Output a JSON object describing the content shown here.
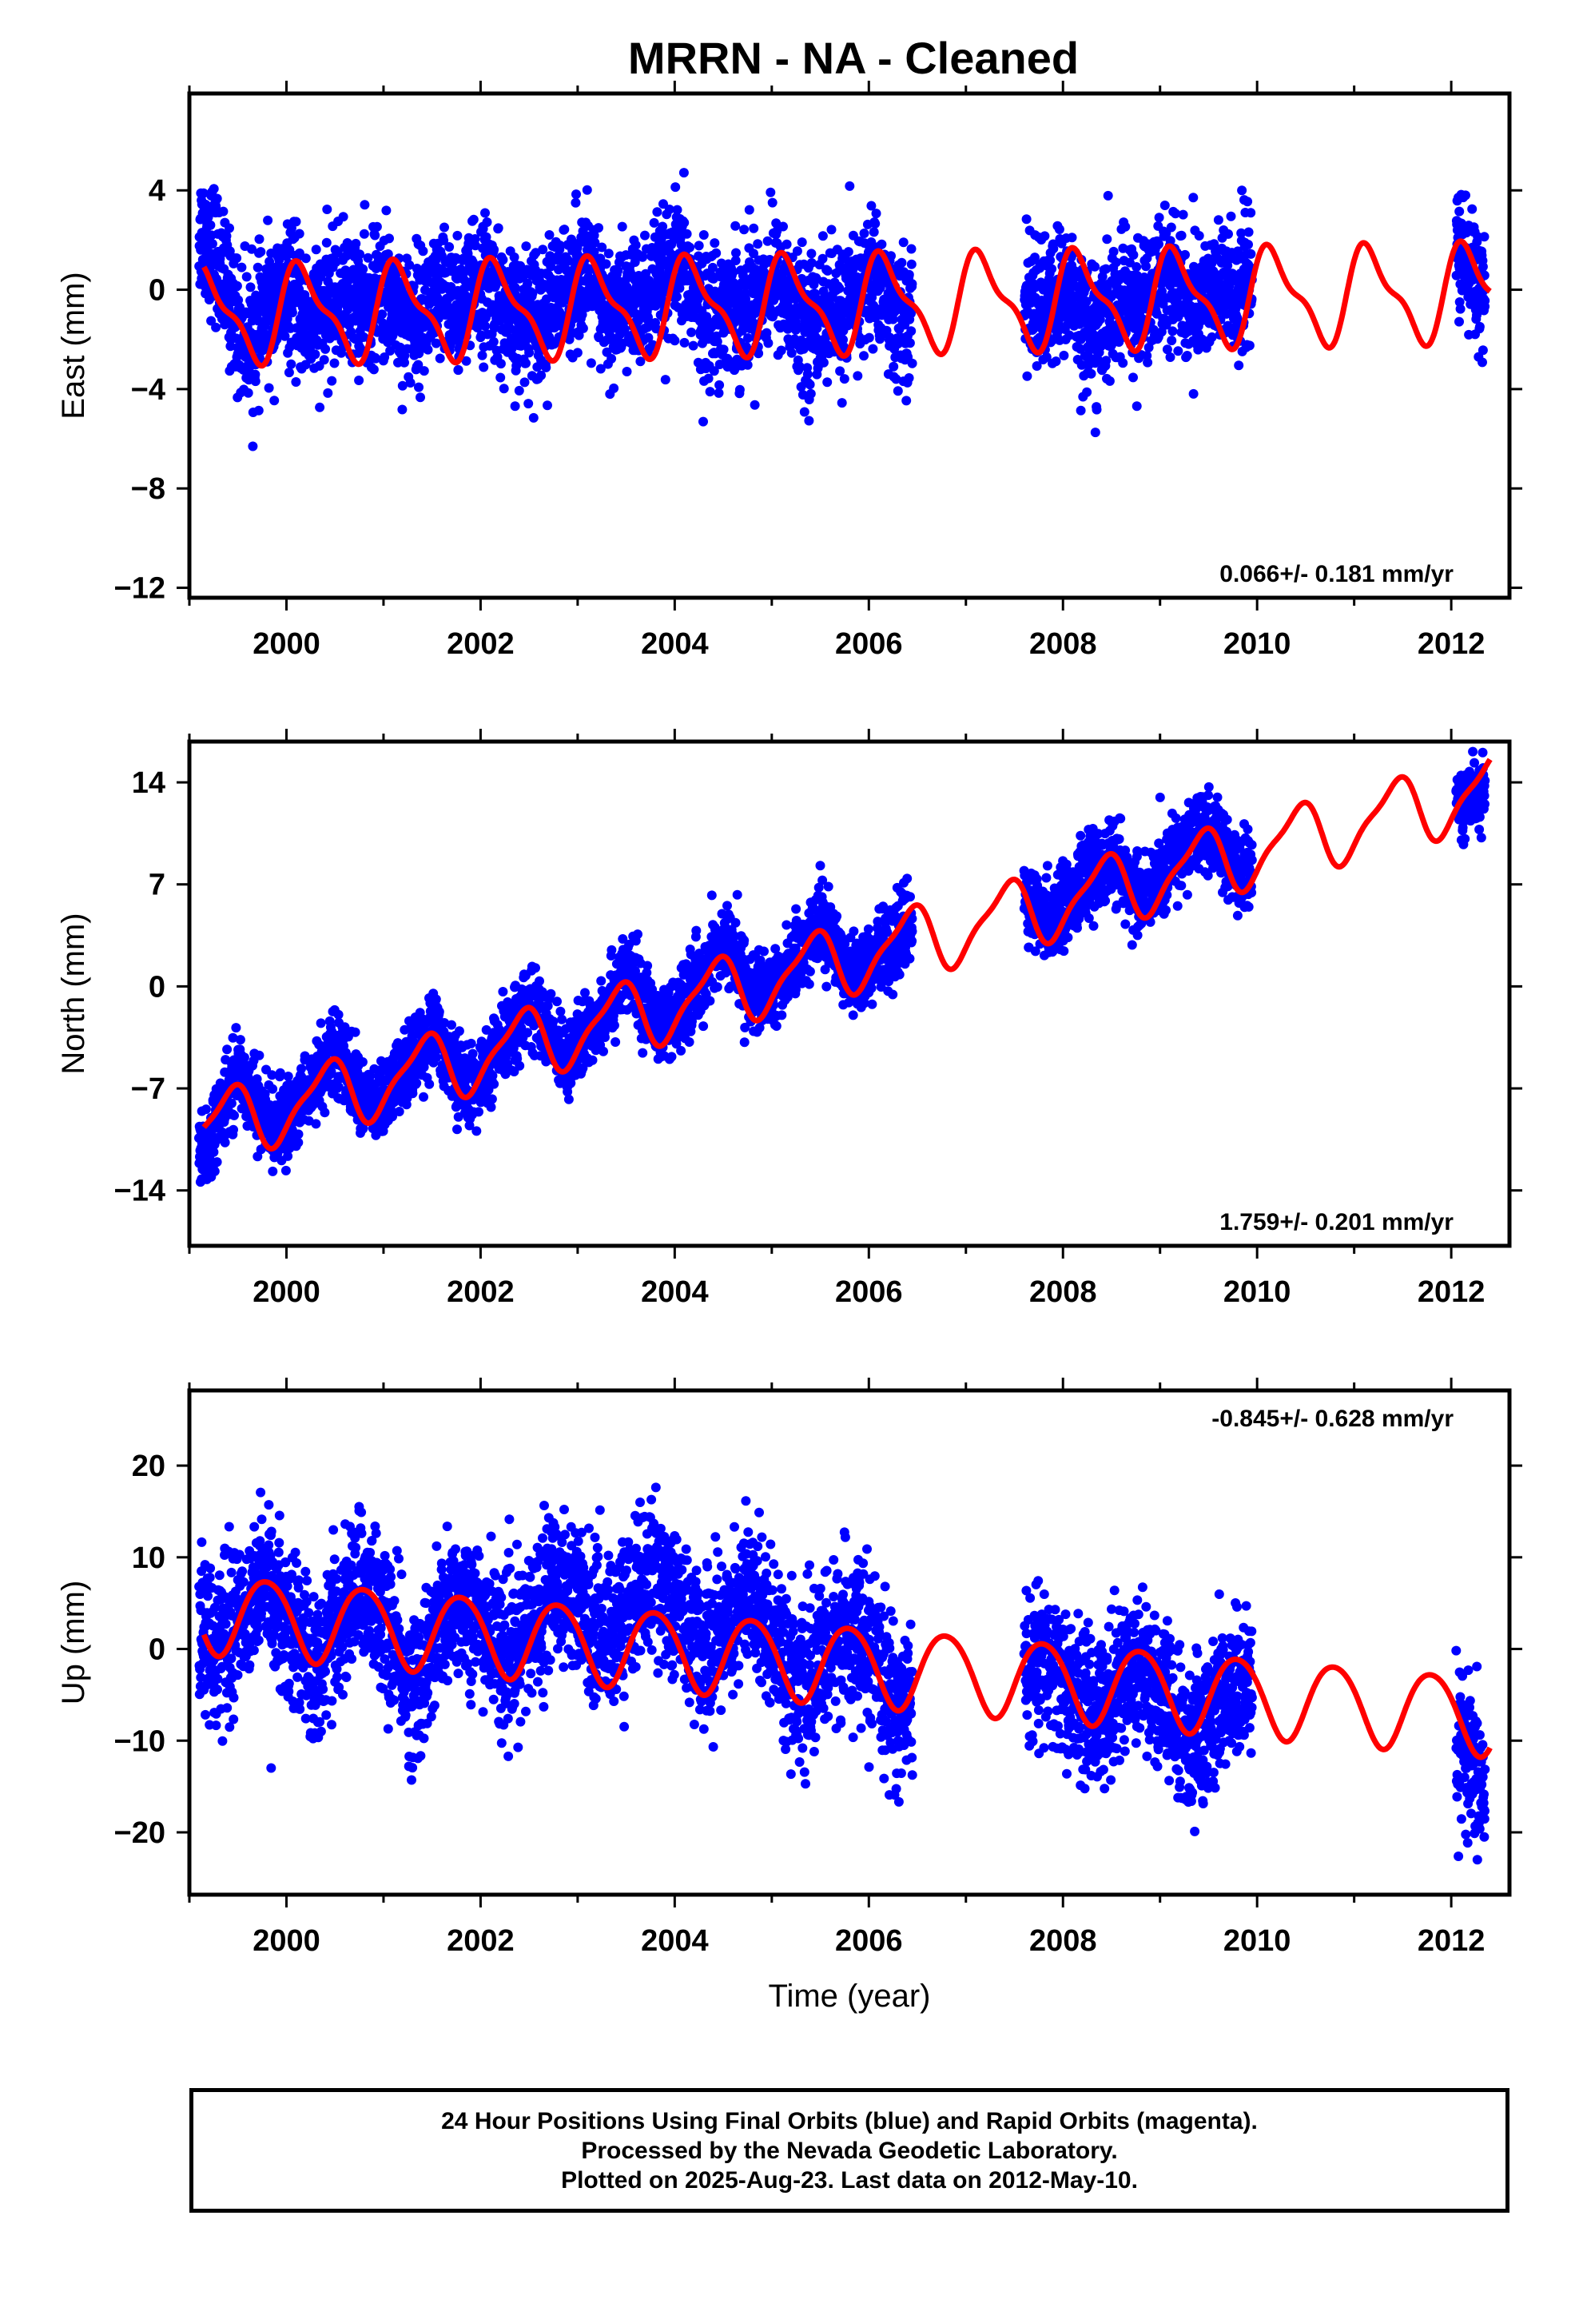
{
  "title": "MRRN  - NA - Cleaned",
  "footer": {
    "line1": "24 Hour Positions Using Final Orbits (blue) and Rapid Orbits (magenta).",
    "line2": "Processed by the Nevada Geodetic Laboratory.",
    "line3": "Plotted on 2025-Aug-23. Last data on 2012-May-10."
  },
  "colors": {
    "observations": "#0000ff",
    "model": "#ff0000"
  },
  "chart_data": [
    {
      "type": "scatter",
      "ylabel": "East (mm)",
      "xlabel": "",
      "xlim": [
        1999.0,
        2012.6
      ],
      "ylim": [
        -12.4,
        7.9
      ],
      "xticks": [
        "2000",
        "2002",
        "2004",
        "2006",
        "2008",
        "2010",
        "2012"
      ],
      "yticks": [
        "4",
        "0",
        "−4",
        "−8",
        "−12"
      ],
      "ytick_values": [
        4,
        0,
        -4,
        -8,
        -12
      ],
      "rate_text": "0.066+/- 0.181 mm/yr",
      "rate_position": "bottom-right",
      "data_segments": [
        [
          1999.1,
          2006.45
        ],
        [
          2007.6,
          2009.95
        ],
        [
          2012.05,
          2012.35
        ]
      ],
      "model": {
        "rate": 0.066,
        "offset": -0.55,
        "ref": 2006.0,
        "annual": [
          1.55,
          0.85
        ],
        "semiannual": [
          0.35,
          0.55
        ]
      },
      "scatter_sigma": 1.3,
      "seasonal_points": [
        {
          "x": 1999.25,
          "y": 3.5
        },
        {
          "x": 1999.55,
          "y": -2.5
        },
        {
          "x": 1999.8,
          "y": 1.2
        },
        {
          "x": 2000.2,
          "y": -3.0
        },
        {
          "x": 2000.7,
          "y": 2.5
        },
        {
          "x": 2001.2,
          "y": -3.0
        },
        {
          "x": 2001.7,
          "y": 2.2
        },
        {
          "x": 2002.3,
          "y": -2.5
        },
        {
          "x": 2002.8,
          "y": 2.0
        },
        {
          "x": 2003.3,
          "y": -2.0
        },
        {
          "x": 2003.8,
          "y": 2.5
        },
        {
          "x": 2004.3,
          "y": -2.0
        },
        {
          "x": 2004.8,
          "y": 2.0
        },
        {
          "x": 2005.3,
          "y": -3.0
        },
        {
          "x": 2005.8,
          "y": 1.5
        },
        {
          "x": 2006.3,
          "y": -2.5
        },
        {
          "x": 2007.7,
          "y": 1.5
        },
        {
          "x": 2008.3,
          "y": -4.0
        },
        {
          "x": 2008.7,
          "y": 1.5
        },
        {
          "x": 2009.3,
          "y": -1.5
        },
        {
          "x": 2009.7,
          "y": 2.0
        },
        {
          "x": 2012.1,
          "y": 0.5
        },
        {
          "x": 2012.3,
          "y": 0.0
        }
      ]
    },
    {
      "type": "scatter",
      "ylabel": "North (mm)",
      "xlabel": "",
      "xlim": [
        1999.0,
        2012.6
      ],
      "ylim": [
        -17.8,
        16.8
      ],
      "xticks": [
        "2000",
        "2002",
        "2004",
        "2006",
        "2008",
        "2010",
        "2012"
      ],
      "yticks": [
        "14",
        "7",
        "0",
        "−7",
        "−14"
      ],
      "ytick_values": [
        14,
        7,
        0,
        -7,
        -14
      ],
      "rate_text": "1.759+/- 0.201 mm/yr",
      "rate_position": "bottom-right",
      "data_segments": [
        [
          1999.1,
          2006.45
        ],
        [
          2007.6,
          2009.95
        ],
        [
          2012.05,
          2012.35
        ]
      ],
      "model": {
        "rate": 1.759,
        "offset": 2.3,
        "ref": 2006.0,
        "annual": [
          1.2,
          -1.9
        ],
        "semiannual": [
          0.4,
          0.5
        ]
      },
      "scatter_sigma": 1.3,
      "seasonal_points": [
        {
          "x": 1999.15,
          "y": -14.0
        },
        {
          "x": 1999.5,
          "y": -5.0
        },
        {
          "x": 2000.0,
          "y": -9.0
        },
        {
          "x": 2000.5,
          "y": -4.0
        },
        {
          "x": 2001.0,
          "y": -8.0
        },
        {
          "x": 2001.5,
          "y": -3.0
        },
        {
          "x": 2002.0,
          "y": -7.0
        },
        {
          "x": 2002.5,
          "y": -1.0
        },
        {
          "x": 2003.0,
          "y": -4.5
        },
        {
          "x": 2003.5,
          "y": 1.0
        },
        {
          "x": 2004.0,
          "y": -2.0
        },
        {
          "x": 2004.5,
          "y": 4.0
        },
        {
          "x": 2005.0,
          "y": 0.0
        },
        {
          "x": 2005.5,
          "y": 4.5
        },
        {
          "x": 2006.0,
          "y": 2.0
        },
        {
          "x": 2007.8,
          "y": 6.0
        },
        {
          "x": 2008.3,
          "y": 8.0
        },
        {
          "x": 2008.8,
          "y": 7.0
        },
        {
          "x": 2009.3,
          "y": 11.0
        },
        {
          "x": 2009.8,
          "y": 9.0
        },
        {
          "x": 2012.1,
          "y": 13.0
        },
        {
          "x": 2012.3,
          "y": 12.5
        }
      ]
    },
    {
      "type": "scatter",
      "ylabel": "Up (mm)",
      "xlabel": "Time (year)",
      "xlim": [
        1999.0,
        2012.6
      ],
      "ylim": [
        -26.8,
        28.2
      ],
      "xticks": [
        "2000",
        "2002",
        "2004",
        "2006",
        "2008",
        "2010",
        "2012"
      ],
      "yticks": [
        "20",
        "10",
        "0",
        "−10",
        "−20"
      ],
      "ytick_values": [
        20,
        10,
        0,
        -10,
        -20
      ],
      "rate_text": "-0.845+/- 0.628 mm/yr",
      "rate_position": "top-right",
      "data_segments": [
        [
          1999.1,
          2006.45
        ],
        [
          2007.6,
          2009.95
        ],
        [
          2012.05,
          2012.35
        ]
      ],
      "model": {
        "rate": -0.845,
        "offset": -1.8,
        "ref": 2006.0,
        "annual": [
          -4.1,
          1.2
        ],
        "semiannual": [
          0.3,
          0.3
        ]
      },
      "scatter_sigma": 4.0,
      "seasonal_points": [
        {
          "x": 1999.3,
          "y": 2.0
        },
        {
          "x": 1999.8,
          "y": 6.0
        },
        {
          "x": 2000.3,
          "y": -2.0
        },
        {
          "x": 2000.8,
          "y": 8.0
        },
        {
          "x": 2001.3,
          "y": -6.0
        },
        {
          "x": 2001.8,
          "y": 5.0
        },
        {
          "x": 2002.3,
          "y": 1.0
        },
        {
          "x": 2002.8,
          "y": 10.0
        },
        {
          "x": 2003.3,
          "y": 7.0
        },
        {
          "x": 2003.8,
          "y": 12.0
        },
        {
          "x": 2004.3,
          "y": 5.0
        },
        {
          "x": 2004.8,
          "y": 8.0
        },
        {
          "x": 2005.3,
          "y": -3.0
        },
        {
          "x": 2005.8,
          "y": 2.0
        },
        {
          "x": 2006.3,
          "y": -6.0
        },
        {
          "x": 2007.8,
          "y": -4.0
        },
        {
          "x": 2008.3,
          "y": -6.0
        },
        {
          "x": 2008.8,
          "y": -3.0
        },
        {
          "x": 2009.3,
          "y": -12.0
        },
        {
          "x": 2009.8,
          "y": -8.0
        },
        {
          "x": 2012.1,
          "y": -14.0
        },
        {
          "x": 2012.3,
          "y": -18.0
        }
      ]
    }
  ]
}
